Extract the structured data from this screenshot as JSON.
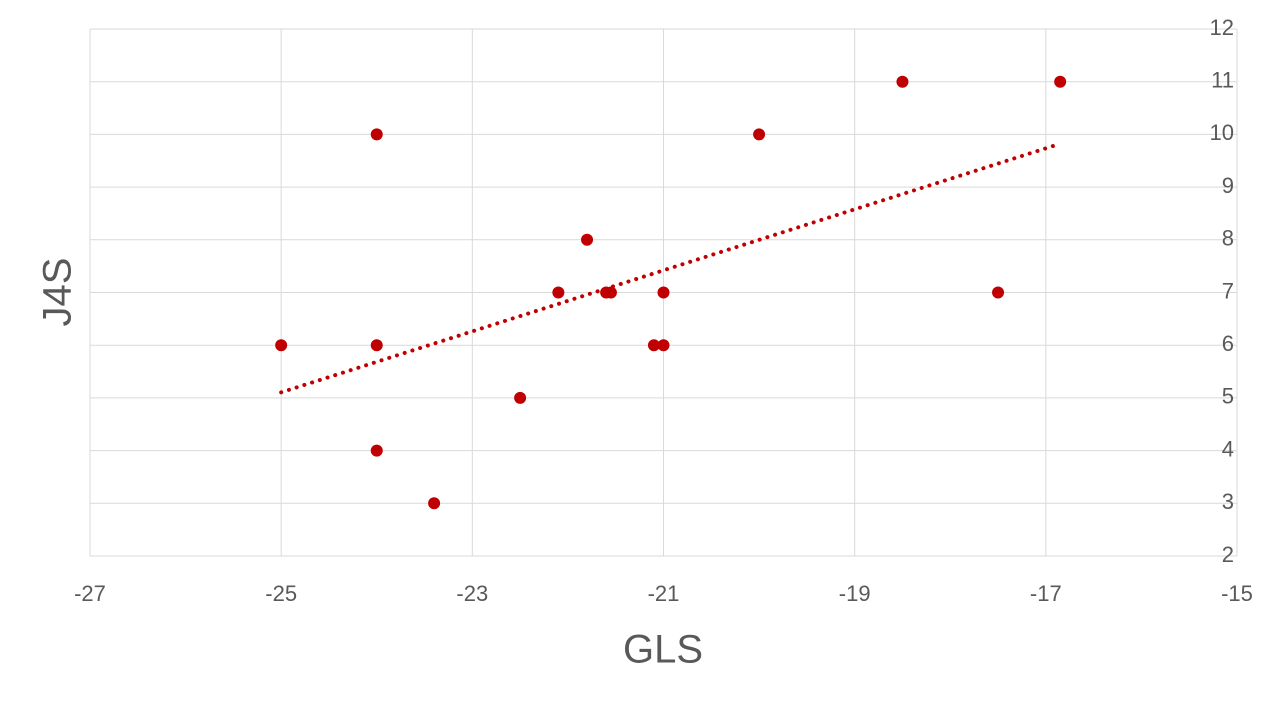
{
  "chart_data": {
    "type": "scatter",
    "x_label": "GLS",
    "y_label": "J4S",
    "x": [
      -25,
      -24,
      -24,
      -24,
      -23.4,
      -22.5,
      -22.1,
      -21.8,
      -21.6,
      -21.55,
      -21.1,
      -21,
      -21,
      -20,
      -18.5,
      -17.5,
      -16.85
    ],
    "series": [
      {
        "color": "#c00000",
        "values": [
          6,
          10,
          6,
          4,
          3,
          5,
          7,
          8,
          7,
          7,
          6,
          6,
          7,
          10,
          11,
          7,
          11
        ]
      }
    ],
    "trendline": "linear",
    "xlim": [
      -27,
      -15
    ],
    "xticks": [
      -27,
      -25,
      -23,
      -21,
      -19,
      -17,
      -15
    ],
    "ylim": [
      2,
      12
    ],
    "yticks": [
      2,
      3,
      4,
      5,
      6,
      7,
      8,
      9,
      10,
      11,
      12
    ],
    "grid": true
  }
}
